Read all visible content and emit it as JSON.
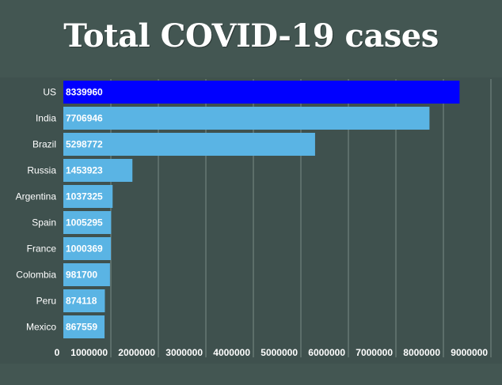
{
  "chart_data": {
    "type": "bar",
    "orientation": "horizontal",
    "title": "Total COVID-19 cases",
    "categories": [
      "US",
      "India",
      "Brazil",
      "Russia",
      "Argentina",
      "Spain",
      "France",
      "Colombia",
      "Peru",
      "Mexico"
    ],
    "values": [
      8339960,
      7706946,
      5298772,
      1453923,
      1037325,
      1005295,
      1000369,
      981700,
      874118,
      867559
    ],
    "xlim": [
      0,
      9000000
    ],
    "xticks": [
      "0",
      "1000000",
      "2000000",
      "3000000",
      "4000000",
      "5000000",
      "6000000",
      "7000000",
      "8000000",
      "9000000"
    ],
    "grid": true,
    "legend": "none",
    "colors": {
      "highlight": "#0000ff",
      "bar": "#5ab4e4",
      "background": "#435652",
      "grid": "#7a8a87",
      "text": "#ffffff"
    },
    "highlight_index": 0
  }
}
